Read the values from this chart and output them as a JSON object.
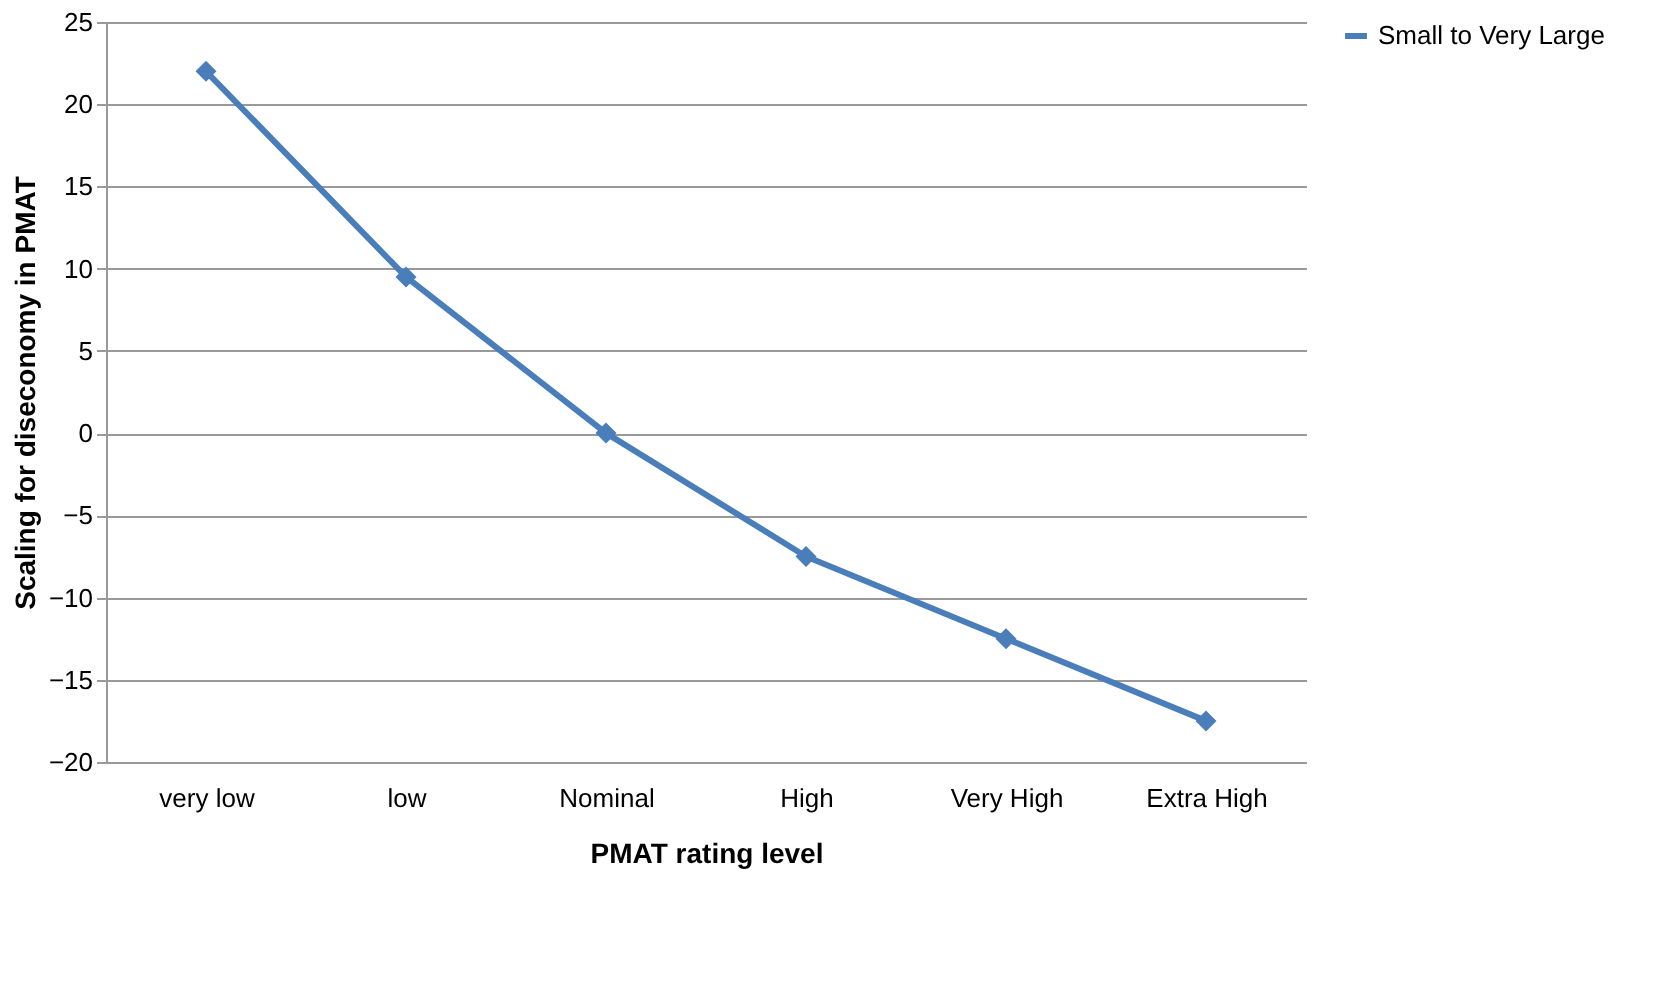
{
  "chart_data": {
    "type": "line",
    "xlabel": "PMAT rating level",
    "ylabel": "Scaling for diseconomy in PMAT",
    "categories": [
      "very low",
      "low",
      "Nominal",
      "High",
      "Very High",
      "Extra High"
    ],
    "series": [
      {
        "name": "Small to Very Large",
        "color": "#4a7ebb",
        "values": [
          22,
          9.5,
          0,
          -7.5,
          -12.5,
          -17.5
        ]
      }
    ],
    "ylim": [
      -20,
      25
    ],
    "yticks": [
      -20,
      -15,
      -10,
      -5,
      0,
      5,
      10,
      15,
      20,
      25
    ],
    "grid": "y",
    "legend": "right",
    "marker": "diamond",
    "line_style": "solid"
  }
}
